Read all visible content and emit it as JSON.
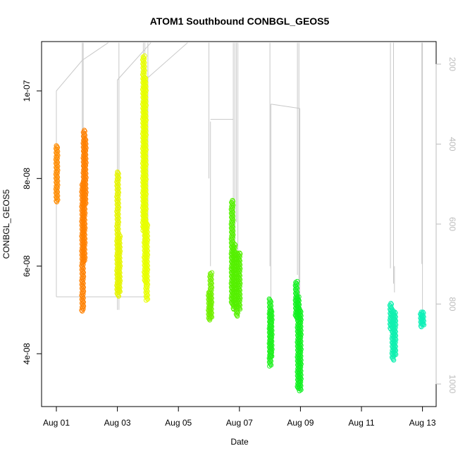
{
  "chart_data": {
    "type": "scatter",
    "title": "ATOM1 Southbound CONBGL_GEOS5",
    "xlabel": "Date",
    "ylabel": "CONBGL_GEOS5",
    "x_ticks": [
      "Aug 01",
      "Aug 03",
      "Aug 05",
      "Aug 07",
      "Aug 09",
      "Aug 11",
      "Aug 13"
    ],
    "y_ticks": [
      "4e-08",
      "6e-08",
      "8e-08",
      "1e-07"
    ],
    "y_ticks_right": [
      "200",
      "400",
      "600",
      "800",
      "1000"
    ],
    "xlim": [
      "2016-07-31T14:00",
      "2016-08-13T12:00"
    ],
    "ylim": [
      2.9e-08,
      1.11e-07
    ],
    "ylim_right_pressure_hPa": [
      1066,
      138
    ],
    "y_right_axis": "reversed",
    "grid": false,
    "legend": "none",
    "point_style": "open-circle",
    "line_color": "#c8c8c8",
    "series": [
      {
        "date": "2016-08-01",
        "color": "#ff8c00",
        "segments": [
          {
            "day": 1.0,
            "ymin": 7.45e-08,
            "ymax": 8.75e-08
          }
        ]
      },
      {
        "date": "2016-08-01",
        "color": "#ff8000",
        "segments": [
          {
            "day": 1.85,
            "ymin": 4.95e-08,
            "ymax": 7.9e-08
          },
          {
            "day": 1.9,
            "ymin": 6.1e-08,
            "ymax": 9.1e-08
          },
          {
            "day": 1.93,
            "ymin": 7.4e-08,
            "ymax": 8.9e-08
          }
        ]
      },
      {
        "date": "2016-08-03",
        "color": "#e6f500",
        "segments": [
          {
            "day": 3.0,
            "ymin": 5.3e-08,
            "ymax": 8.15e-08
          },
          {
            "day": 3.05,
            "ymin": 5.4e-08,
            "ymax": 6.7e-08
          }
        ]
      },
      {
        "date": "2016-08-03",
        "color": "#e8ff00",
        "segments": [
          {
            "day": 3.85,
            "ymin": 6.8e-08,
            "ymax": 1.08e-07
          },
          {
            "day": 3.9,
            "ymin": 5.6e-08,
            "ymax": 1.03e-07
          },
          {
            "day": 3.95,
            "ymin": 5.2e-08,
            "ymax": 7e-08
          }
        ]
      },
      {
        "date": "2016-08-06",
        "color": "#73f000",
        "segments": [
          {
            "day": 6.0,
            "ymin": 4.75e-08,
            "ymax": 5.4e-08
          },
          {
            "day": 6.05,
            "ymin": 4.8e-08,
            "ymax": 5.85e-08
          }
        ]
      },
      {
        "date": "2016-08-06",
        "color": "#55f000",
        "segments": [
          {
            "day": 6.75,
            "ymin": 5.1e-08,
            "ymax": 7.5e-08
          },
          {
            "day": 6.82,
            "ymin": 5e-08,
            "ymax": 6.5e-08
          },
          {
            "day": 6.9,
            "ymin": 4.85e-08,
            "ymax": 6.3e-08
          },
          {
            "day": 6.98,
            "ymin": 5e-08,
            "ymax": 6.3e-08
          }
        ]
      },
      {
        "date": "2016-08-08",
        "color": "#20f020",
        "segments": [
          {
            "day": 8.0,
            "ymin": 3.7e-08,
            "ymax": 5.25e-08
          },
          {
            "day": 8.03,
            "ymin": 3.9e-08,
            "ymax": 5e-08
          }
        ]
      },
      {
        "date": "2016-08-08",
        "color": "#10f020",
        "segments": [
          {
            "day": 8.85,
            "ymin": 4.8e-08,
            "ymax": 5.65e-08
          },
          {
            "day": 8.92,
            "ymin": 3.2e-08,
            "ymax": 5.3e-08
          },
          {
            "day": 8.98,
            "ymin": 3.15e-08,
            "ymax": 5e-08
          }
        ]
      },
      {
        "date": "2016-08-12",
        "color": "#10f0b0",
        "segments": [
          {
            "day": 11.95,
            "ymin": 4.55e-08,
            "ymax": 5.15e-08
          },
          {
            "day": 12.02,
            "ymin": 3.85e-08,
            "ymax": 5e-08
          },
          {
            "day": 12.08,
            "ymin": 3.95e-08,
            "ymax": 4.95e-08
          }
        ]
      },
      {
        "date": "2016-08-12",
        "color": "#10f0b8",
        "segments": [
          {
            "day": 12.95,
            "ymin": 4.6e-08,
            "ymax": 4.95e-08
          },
          {
            "day": 13.0,
            "ymin": 4.65e-08,
            "ymax": 4.95e-08
          }
        ]
      }
    ]
  }
}
